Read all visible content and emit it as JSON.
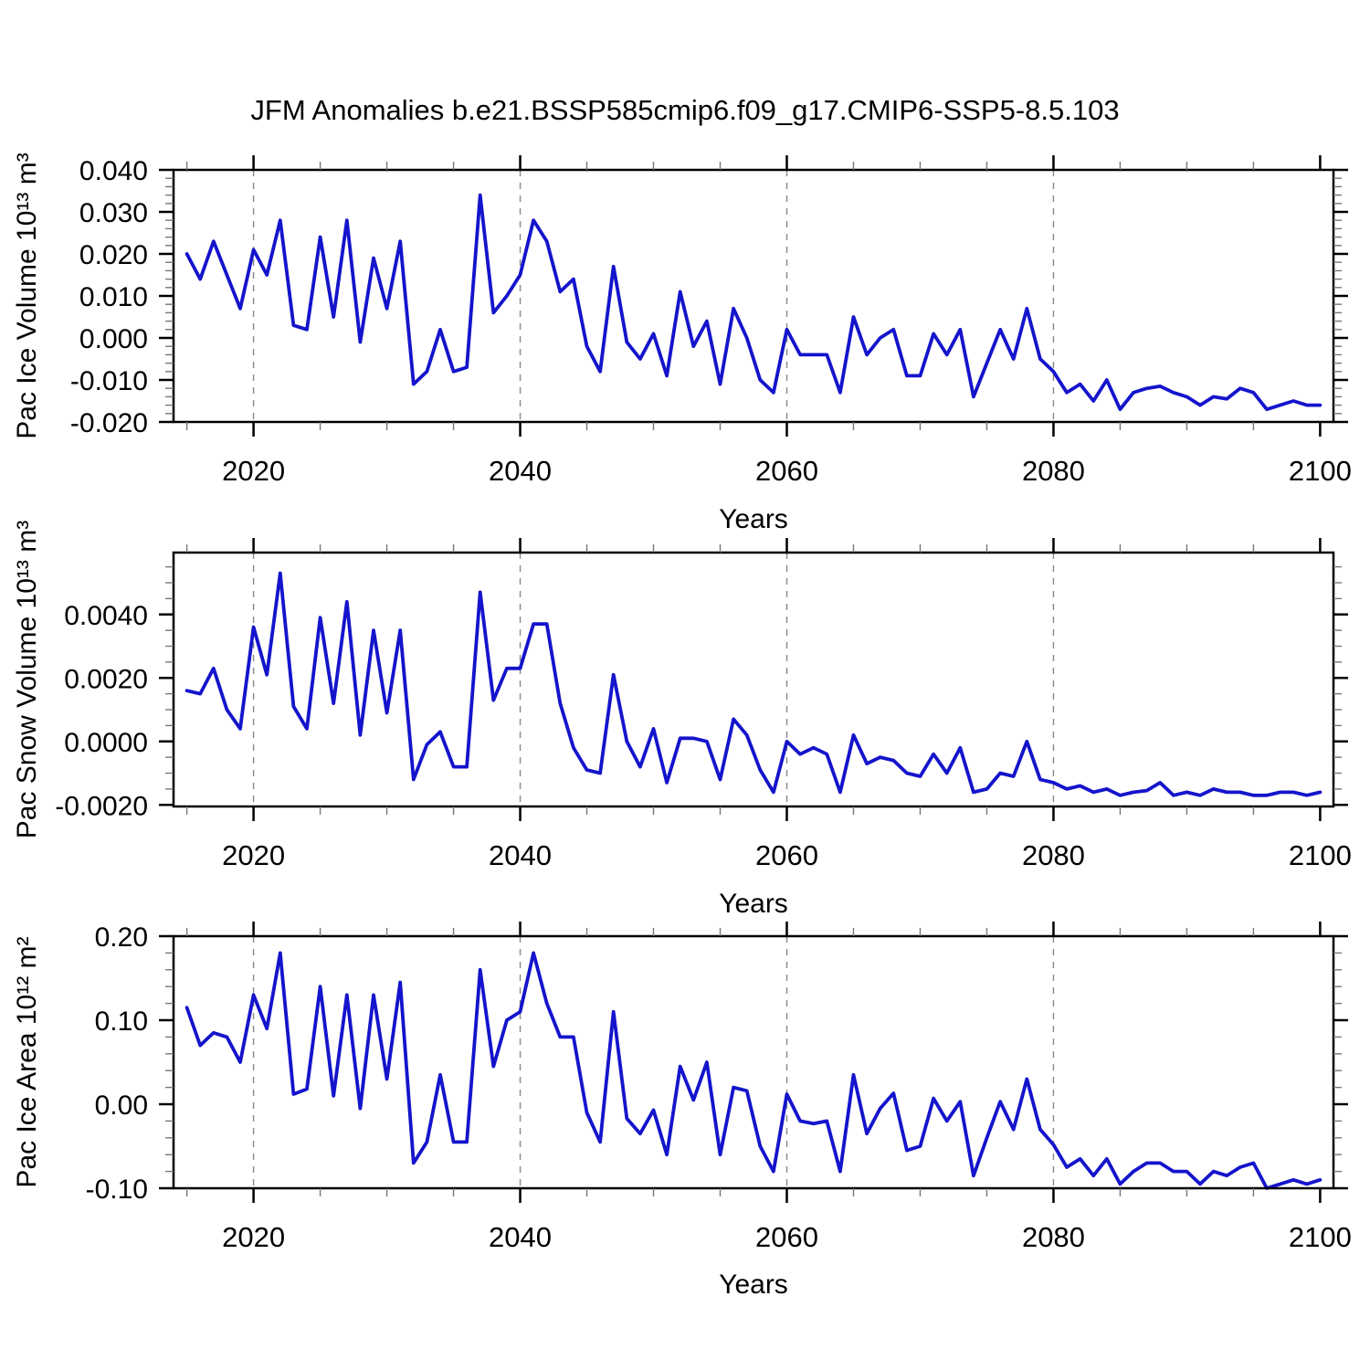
{
  "title": "JFM Anomalies b.e21.BSSP585cmip6.f09_g17.CMIP6-SSP5-8.5.103",
  "chart_data": {
    "type": "line",
    "title": "JFM Anomalies b.e21.BSSP585cmip6.f09_g17.CMIP6-SSP5-8.5.103",
    "x_label": "Years",
    "line_color": "#1414CC",
    "grid_color": "#888888",
    "xlim": [
      2014,
      2101
    ],
    "xticks": [
      2020,
      2040,
      2060,
      2080,
      2100
    ],
    "xminor_step": 5,
    "grid_x": [
      2020,
      2040,
      2060,
      2080
    ],
    "years": [
      2015,
      2016,
      2017,
      2018,
      2019,
      2020,
      2021,
      2022,
      2023,
      2024,
      2025,
      2026,
      2027,
      2028,
      2029,
      2030,
      2031,
      2032,
      2033,
      2034,
      2035,
      2036,
      2037,
      2038,
      2039,
      2040,
      2041,
      2042,
      2043,
      2044,
      2045,
      2046,
      2047,
      2048,
      2049,
      2050,
      2051,
      2052,
      2053,
      2054,
      2055,
      2056,
      2057,
      2058,
      2059,
      2060,
      2061,
      2062,
      2063,
      2064,
      2065,
      2066,
      2067,
      2068,
      2069,
      2070,
      2071,
      2072,
      2073,
      2074,
      2075,
      2076,
      2077,
      2078,
      2079,
      2080,
      2081,
      2082,
      2083,
      2084,
      2085,
      2086,
      2087,
      2088,
      2089,
      2090,
      2091,
      2092,
      2093,
      2094,
      2095,
      2096,
      2097,
      2098,
      2099,
      2100
    ],
    "panels": [
      {
        "ylabel": "Pac Ice Volume 10¹³ m³",
        "ylim": [
          -0.02,
          0.04
        ],
        "ytick_values": [
          0.04,
          0.03,
          0.02,
          0.01,
          0.0,
          -0.01,
          -0.02
        ],
        "ytick_labels": [
          "0.040",
          "0.030",
          "0.020",
          "0.010",
          "0.000",
          "-0.010",
          "-0.020"
        ],
        "yminor_step": 0.002,
        "ymajor_step": 0.01,
        "values": [
          0.02,
          0.014,
          0.023,
          0.015,
          0.007,
          0.021,
          0.015,
          0.028,
          0.003,
          0.002,
          0.024,
          0.005,
          0.028,
          -0.001,
          0.019,
          0.007,
          0.023,
          -0.011,
          -0.008,
          0.002,
          -0.008,
          -0.007,
          0.034,
          0.006,
          0.01,
          0.015,
          0.028,
          0.023,
          0.011,
          0.014,
          -0.002,
          -0.008,
          0.017,
          -0.001,
          -0.005,
          0.001,
          -0.009,
          0.011,
          -0.002,
          0.004,
          -0.011,
          0.007,
          0.0,
          -0.01,
          -0.013,
          0.002,
          -0.004,
          -0.004,
          -0.004,
          -0.013,
          0.005,
          -0.004,
          0.0,
          0.002,
          -0.009,
          -0.009,
          0.001,
          -0.004,
          0.002,
          -0.014,
          -0.006,
          0.002,
          -0.005,
          0.007,
          -0.005,
          -0.008,
          -0.013,
          -0.011,
          -0.015,
          -0.01,
          -0.017,
          -0.013,
          -0.012,
          -0.0115,
          -0.013,
          -0.014,
          -0.016,
          -0.014,
          -0.0145,
          -0.012,
          -0.013,
          -0.017,
          -0.016,
          -0.015,
          -0.016,
          -0.016
        ]
      },
      {
        "ylabel": "Pac Snow Volume 10¹³ m³",
        "ylim": [
          -0.00205,
          0.00595
        ],
        "ytick_values": [
          0.004,
          0.002,
          0.0,
          -0.002
        ],
        "ytick_labels": [
          "0.0040",
          "0.0020",
          "0.0000",
          "-0.0020"
        ],
        "yminor_step": 0.0005,
        "ymajor_step": 0.002,
        "values": [
          0.0016,
          0.0015,
          0.0023,
          0.001,
          0.0004,
          0.0036,
          0.0021,
          0.0053,
          0.0011,
          0.0004,
          0.0039,
          0.0012,
          0.0044,
          0.0002,
          0.0035,
          0.0009,
          0.0035,
          -0.0012,
          -0.0001,
          0.0003,
          -0.0008,
          -0.0008,
          0.0047,
          0.0013,
          0.0023,
          0.0023,
          0.0037,
          0.0037,
          0.0012,
          -0.0002,
          -0.0009,
          -0.001,
          0.0021,
          0.0,
          -0.0008,
          0.0004,
          -0.0013,
          0.0001,
          0.0001,
          0.0,
          -0.0012,
          0.0007,
          0.0002,
          -0.0009,
          -0.0016,
          0.0,
          -0.0004,
          -0.0002,
          -0.0004,
          -0.0016,
          0.0002,
          -0.0007,
          -0.0005,
          -0.0006,
          -0.001,
          -0.0011,
          -0.0004,
          -0.001,
          -0.0002,
          -0.0016,
          -0.0015,
          -0.001,
          -0.0011,
          0.0,
          -0.0012,
          -0.0013,
          -0.0015,
          -0.0014,
          -0.0016,
          -0.0015,
          -0.0017,
          -0.0016,
          -0.00155,
          -0.0013,
          -0.0017,
          -0.0016,
          -0.0017,
          -0.0015,
          -0.0016,
          -0.0016,
          -0.0017,
          -0.0017,
          -0.0016,
          -0.0016,
          -0.0017,
          -0.0016
        ]
      },
      {
        "ylabel": "Pac Ice Area 10¹² m²",
        "ylim": [
          -0.1,
          0.2
        ],
        "ytick_values": [
          0.2,
          0.1,
          0.0,
          -0.1
        ],
        "ytick_labels": [
          "0.20",
          "0.10",
          "0.00",
          "-0.10"
        ],
        "yminor_step": 0.02,
        "ymajor_step": 0.1,
        "values": [
          0.115,
          0.07,
          0.085,
          0.08,
          0.05,
          0.13,
          0.09,
          0.18,
          0.012,
          0.018,
          0.14,
          0.01,
          0.13,
          -0.005,
          0.13,
          0.03,
          0.145,
          -0.07,
          -0.045,
          0.035,
          -0.045,
          -0.045,
          0.16,
          0.045,
          0.1,
          0.11,
          0.18,
          0.12,
          0.08,
          0.08,
          -0.01,
          -0.045,
          0.11,
          -0.017,
          -0.035,
          -0.007,
          -0.06,
          0.045,
          0.005,
          0.05,
          -0.06,
          0.02,
          0.016,
          -0.05,
          -0.08,
          0.012,
          -0.02,
          -0.023,
          -0.02,
          -0.08,
          0.035,
          -0.035,
          -0.005,
          0.013,
          -0.055,
          -0.05,
          0.007,
          -0.02,
          0.003,
          -0.085,
          -0.04,
          0.003,
          -0.03,
          0.03,
          -0.03,
          -0.048,
          -0.075,
          -0.065,
          -0.085,
          -0.065,
          -0.095,
          -0.08,
          -0.07,
          -0.07,
          -0.08,
          -0.08,
          -0.095,
          -0.08,
          -0.085,
          -0.075,
          -0.07,
          -0.1,
          -0.095,
          -0.09,
          -0.095,
          -0.09
        ]
      }
    ]
  }
}
